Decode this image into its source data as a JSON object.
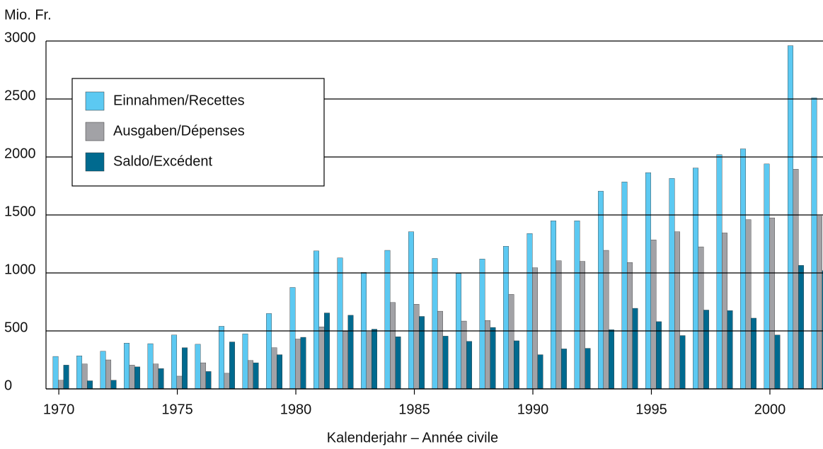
{
  "chart_data": {
    "type": "bar",
    "ylabel": "Mio. Fr.",
    "xlabel": "Kalenderjahr – Année civile",
    "x": [
      1970,
      1971,
      1972,
      1973,
      1974,
      1975,
      1976,
      1977,
      1978,
      1979,
      1980,
      1981,
      1982,
      1983,
      1984,
      1985,
      1986,
      1987,
      1988,
      1989,
      1990,
      1991,
      1992,
      1993,
      1994,
      1995,
      1996,
      1997,
      1998,
      1999,
      2000,
      2001,
      2002
    ],
    "series": [
      {
        "name": "Einnahmen/Recettes",
        "color": "#5cc9f2",
        "values": [
          280,
          285,
          325,
          395,
          390,
          465,
          385,
          540,
          475,
          650,
          875,
          1190,
          1130,
          1005,
          1195,
          1355,
          1125,
          995,
          1120,
          1230,
          1340,
          1450,
          1450,
          1705,
          1785,
          1865,
          1815,
          1905,
          2020,
          2070,
          1940,
          2960,
          2510
        ]
      },
      {
        "name": "Ausgaben/Dépenses",
        "color": "#a2a2a6",
        "values": [
          75,
          215,
          250,
          205,
          215,
          110,
          225,
          135,
          245,
          355,
          430,
          535,
          495,
          490,
          745,
          730,
          670,
          585,
          590,
          815,
          1045,
          1105,
          1100,
          1195,
          1090,
          1285,
          1355,
          1225,
          1345,
          1460,
          1475,
          1895,
          1490
        ]
      },
      {
        "name": "Saldo/Excédent",
        "color": "#006a8f",
        "values": [
          205,
          70,
          75,
          190,
          175,
          355,
          150,
          405,
          225,
          295,
          445,
          655,
          635,
          515,
          450,
          625,
          455,
          410,
          530,
          415,
          295,
          345,
          350,
          510,
          695,
          580,
          460,
          680,
          675,
          610,
          465,
          1065,
          1020
        ]
      }
    ],
    "xlim": [
      1969.46,
      2002.24
    ],
    "xticks": [
      1970,
      1975,
      1980,
      1985,
      1990,
      1995,
      2000
    ],
    "ylim": [
      0,
      3000
    ],
    "yticks": [
      0,
      500,
      1000,
      1500,
      2000,
      2500,
      3000
    ],
    "grid": true,
    "legend": "upper left"
  }
}
